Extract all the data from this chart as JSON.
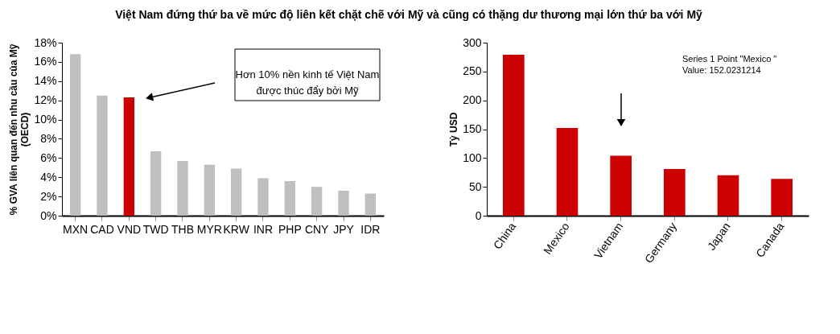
{
  "chart_data": [
    {
      "type": "bar",
      "title": "Việt Nam đứng thứ ba về mức độ liên kết chặt chẽ với Mỹ và cũng có thặng dư thương mại lớn thứ ba với Mỹ",
      "ylabel": "% GVA liên quan đến nhu cầu của Mỹ\n(OECD)",
      "categories": [
        "MXN",
        "CAD",
        "VND",
        "TWD",
        "THB",
        "MYR",
        "KRW",
        "INR",
        "PHP",
        "CNY",
        "JPY",
        "IDR"
      ],
      "values": [
        16.8,
        12.5,
        12.3,
        6.7,
        5.7,
        5.3,
        4.9,
        3.9,
        3.6,
        3.0,
        2.6,
        2.3
      ],
      "colors": [
        "#bfbfbf",
        "#bfbfbf",
        "#cc0000",
        "#bfbfbf",
        "#bfbfbf",
        "#bfbfbf",
        "#bfbfbf",
        "#bfbfbf",
        "#bfbfbf",
        "#bfbfbf",
        "#bfbfbf",
        "#bfbfbf"
      ],
      "ylim": [
        0,
        18
      ],
      "yticks": [
        {
          "value": 0,
          "label": "0%"
        },
        {
          "value": 2,
          "label": "2%"
        },
        {
          "value": 4,
          "label": "4%"
        },
        {
          "value": 6,
          "label": "6%"
        },
        {
          "value": 8,
          "label": "8%"
        },
        {
          "value": 10,
          "label": "10%"
        },
        {
          "value": 12,
          "label": "12%"
        },
        {
          "value": 14,
          "label": "14%"
        },
        {
          "value": 16,
          "label": "16%"
        },
        {
          "value": 18,
          "label": "18%"
        }
      ],
      "annotations": [
        "Hơn 10% nền kinh tế Việt Nam\nđược thúc đẩy bởi Mỹ"
      ],
      "grid": false
    },
    {
      "type": "bar",
      "ylabel": "Tỷ USD",
      "categories": [
        "China",
        "Mexico",
        "Vietnam",
        "Germany",
        "Japan",
        "Canada"
      ],
      "values": [
        279,
        152,
        104,
        81,
        70,
        64
      ],
      "color": "#cc0000",
      "ylim": [
        0,
        300
      ],
      "yticks": [
        0,
        50,
        100,
        150,
        200,
        250,
        300
      ],
      "annotations": [
        "Series 1 Point \"Mexico \"\nValue: 152.0231214"
      ],
      "grid": false
    }
  ]
}
